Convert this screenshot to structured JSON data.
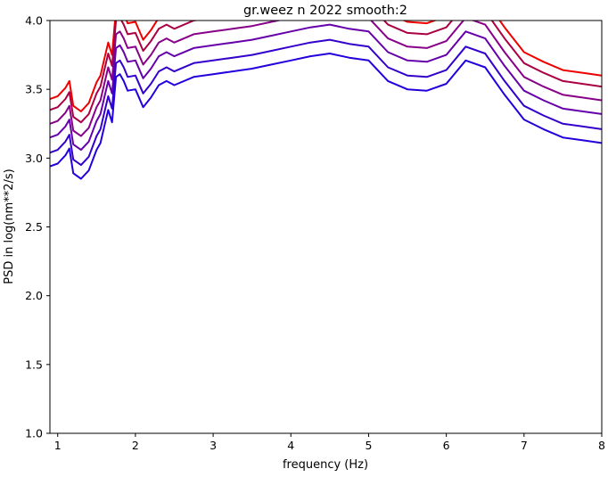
{
  "chart_data": {
    "type": "line",
    "title": "gr.weez n 2022 smooth:2",
    "xlabel": "frequency (Hz)",
    "ylabel": "PSD in log(nm**2/s)",
    "xlim": [
      0.9,
      8.0
    ],
    "ylim": [
      1.0,
      4.0
    ],
    "xticks": [
      1,
      2,
      3,
      4,
      5,
      6,
      7,
      8
    ],
    "xtick_labels": [
      "1",
      "2",
      "3",
      "4",
      "5",
      "6",
      "7",
      "8"
    ],
    "yticks": [
      1.0,
      1.5,
      2.0,
      2.5,
      3.0,
      3.5,
      4.0
    ],
    "ytick_labels": [
      "1.0",
      "1.5",
      "2.0",
      "2.5",
      "3.0",
      "3.5",
      "4.0"
    ],
    "grid": false,
    "legend": "none",
    "series_template": {
      "x": [
        0.9,
        1.0,
        1.1,
        1.15,
        1.2,
        1.3,
        1.4,
        1.5,
        1.55,
        1.6,
        1.65,
        1.7,
        1.75,
        1.8,
        1.85,
        1.9,
        2.0,
        2.1,
        2.2,
        2.3,
        2.4,
        2.5,
        2.75,
        3.0,
        3.25,
        3.5,
        3.75,
        4.0,
        4.25,
        4.5,
        4.75,
        5.0,
        5.25,
        5.5,
        5.75,
        6.0,
        6.25,
        6.5,
        6.75,
        7.0,
        7.25,
        7.5,
        7.75,
        8.0
      ],
      "y": [
        3.43,
        3.45,
        3.51,
        3.56,
        3.38,
        3.34,
        3.4,
        3.55,
        3.6,
        3.72,
        3.84,
        3.75,
        4.08,
        4.1,
        4.05,
        3.98,
        3.99,
        3.86,
        3.93,
        4.02,
        4.05,
        4.02,
        4.08,
        4.1,
        4.12,
        4.14,
        4.17,
        4.2,
        4.23,
        4.25,
        4.22,
        4.2,
        4.05,
        3.99,
        3.98,
        4.03,
        4.2,
        4.15,
        3.95,
        3.77,
        3.7,
        3.64,
        3.62,
        3.6
      ]
    },
    "series": [
      {
        "color": "#ee0000",
        "offset": 0.0
      },
      {
        "color": "#aa0044",
        "offset": -0.08
      },
      {
        "color": "#880088",
        "offset": -0.18
      },
      {
        "color": "#6600aa",
        "offset": -0.28
      },
      {
        "color": "#3300cc",
        "offset": -0.39
      },
      {
        "color": "#2200dd",
        "offset": -0.49
      }
    ]
  }
}
